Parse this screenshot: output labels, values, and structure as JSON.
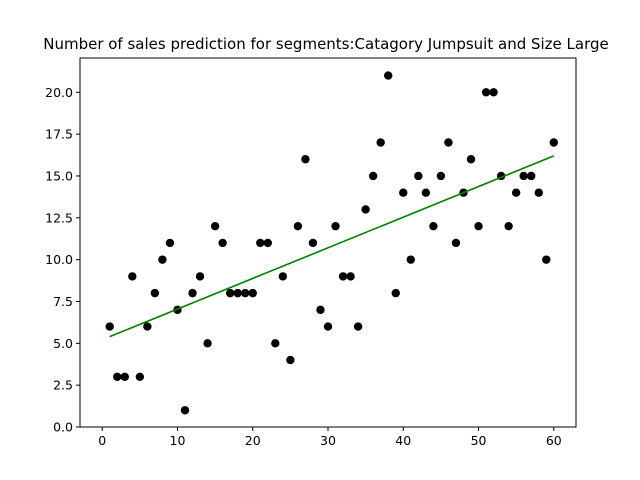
{
  "chart_data": {
    "type": "scatter",
    "title": "Number of sales prediction for segments:Catagory Jumpsuit and Size Large",
    "xlabel": "",
    "ylabel": "",
    "xlim": [
      -2.95,
      62.95
    ],
    "ylim": [
      0,
      22.05
    ],
    "xticks": [
      0,
      10,
      20,
      30,
      40,
      50,
      60
    ],
    "xtick_labels": [
      "0",
      "10",
      "20",
      "30",
      "40",
      "50",
      "60"
    ],
    "yticks": [
      0,
      2.5,
      5,
      7.5,
      10,
      12.5,
      15,
      17.5,
      20
    ],
    "ytick_labels": [
      "0.0",
      "2.5",
      "5.0",
      "7.5",
      "10.0",
      "12.5",
      "15.0",
      "17.5",
      "20.0"
    ],
    "grid": false,
    "series": [
      {
        "type": "scatter",
        "color": "#000000",
        "x": [
          1,
          2,
          3,
          4,
          5,
          6,
          7,
          8,
          9,
          10,
          11,
          12,
          13,
          14,
          15,
          16,
          17,
          18,
          19,
          20,
          21,
          22,
          23,
          24,
          25,
          26,
          27,
          28,
          29,
          30,
          31,
          32,
          33,
          34,
          35,
          36,
          37,
          38,
          39,
          40,
          41,
          42,
          43,
          44,
          45,
          46,
          47,
          48,
          49,
          50,
          51,
          52,
          53,
          54,
          55,
          56,
          57,
          58,
          59,
          60
        ],
        "y": [
          6,
          3,
          3,
          9,
          3,
          6,
          8,
          10,
          11,
          7,
          1,
          8,
          9,
          5,
          12,
          11,
          8,
          8,
          8,
          8,
          11,
          11,
          5,
          9,
          4,
          12,
          16,
          11,
          7,
          6,
          12,
          9,
          9,
          6,
          13,
          15,
          17,
          21,
          8,
          14,
          10,
          15,
          14,
          12,
          15,
          17,
          11,
          14,
          16,
          12,
          20,
          20,
          15,
          12,
          14,
          15,
          15,
          14,
          10,
          17
        ]
      },
      {
        "type": "line",
        "color": "#008000",
        "x": [
          1,
          60
        ],
        "y": [
          5.4,
          16.2
        ]
      }
    ]
  }
}
